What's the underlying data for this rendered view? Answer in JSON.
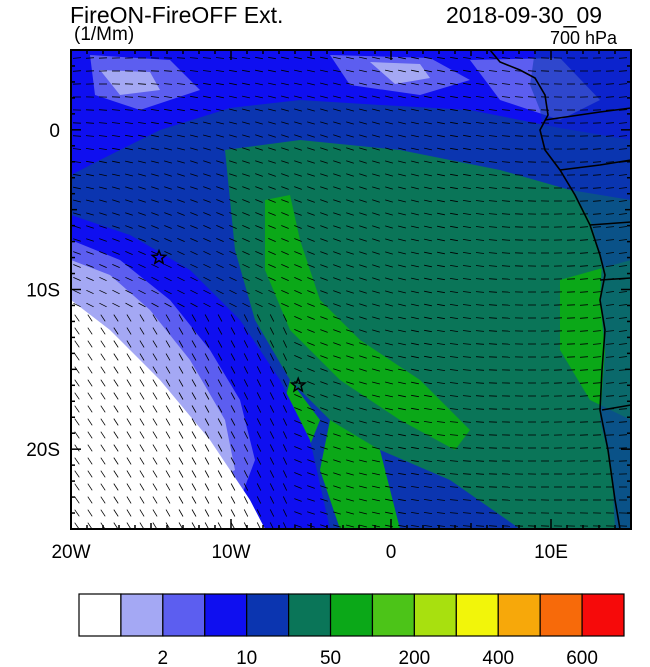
{
  "header": {
    "title": "FireON-FireOFF Ext.",
    "units": "(1/Mm)",
    "timestamp": "2018-09-30_09",
    "level": "700 hPa"
  },
  "map": {
    "lat_range": [
      -25,
      5
    ],
    "lon_range": [
      -20,
      15
    ],
    "y_ticks": [
      {
        "value": 0,
        "label": "0"
      },
      {
        "value": -10,
        "label": "10S"
      },
      {
        "value": -20,
        "label": "20S"
      }
    ],
    "x_ticks": [
      {
        "value": -20,
        "label": "20W"
      },
      {
        "value": -10,
        "label": "10W"
      },
      {
        "value": 0,
        "label": "0"
      },
      {
        "value": 10,
        "label": "10E"
      }
    ],
    "markers": [
      {
        "type": "star",
        "lon": -14.5,
        "lat": -8
      },
      {
        "type": "star",
        "lon": -5.8,
        "lat": -16
      }
    ]
  },
  "colorbar": {
    "colors": [
      "#ffffff",
      "#a4a8f4",
      "#5c5ef0",
      "#0f0ff0",
      "#0b35b0",
      "#0a7558",
      "#0ba818",
      "#4cc418",
      "#a8e00f",
      "#f2f50a",
      "#f7a80a",
      "#f76a0a",
      "#f60a0a"
    ],
    "labels": [
      {
        "index": 1,
        "label": "2"
      },
      {
        "index": 3,
        "label": "10"
      },
      {
        "index": 5,
        "label": "50"
      },
      {
        "index": 7,
        "label": "200"
      },
      {
        "index": 9,
        "label": "400"
      },
      {
        "index": 11,
        "label": "600"
      }
    ]
  }
}
